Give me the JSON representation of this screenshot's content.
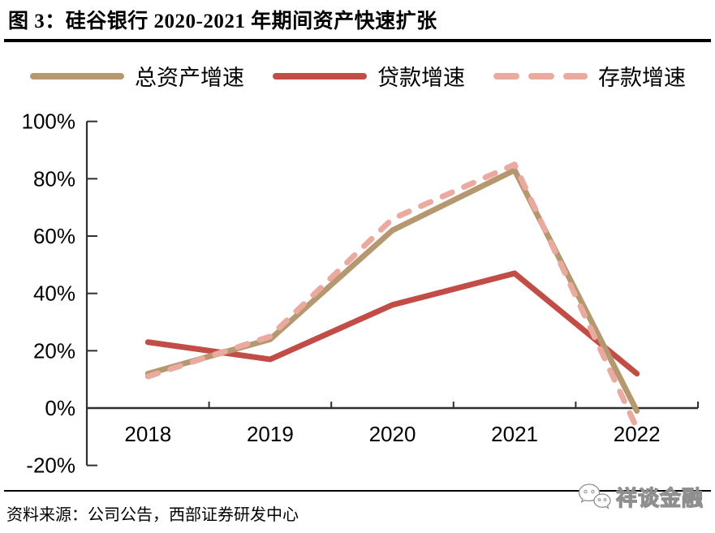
{
  "title": "图 3：硅谷银行 2020-2021 年期间资产快速扩张",
  "source_note": "资料来源：公司公告，西部证券研发中心",
  "watermark": {
    "label": "祥谈金融",
    "icon": "wechat-icon"
  },
  "colors": {
    "total_assets": "#b69870",
    "loans": "#c24d47",
    "deposits": "#ebaaa0",
    "axis": "#2f2f2f",
    "text": "#000000"
  },
  "chart_data": {
    "type": "line",
    "title": "硅谷银行 2020-2021 年期间资产快速扩张",
    "categories": [
      "2018",
      "2019",
      "2020",
      "2021",
      "2022"
    ],
    "series": [
      {
        "name": "总资产增速",
        "style": "solid",
        "color_key": "total_assets",
        "values": [
          12,
          24,
          62,
          83,
          -1
        ]
      },
      {
        "name": "贷款增速",
        "style": "solid",
        "color_key": "loans",
        "values": [
          23,
          17,
          36,
          47,
          12
        ]
      },
      {
        "name": "存款增速",
        "style": "dashed",
        "color_key": "deposits",
        "values": [
          11,
          25,
          66,
          85,
          -7
        ]
      }
    ],
    "ylim": [
      -20,
      100
    ],
    "ytick_step": 20,
    "ytick_labels": [
      "-20%",
      "0%",
      "20%",
      "40%",
      "60%",
      "80%",
      "100%"
    ],
    "unit": "percent",
    "legend_position": "top",
    "grid": false
  }
}
